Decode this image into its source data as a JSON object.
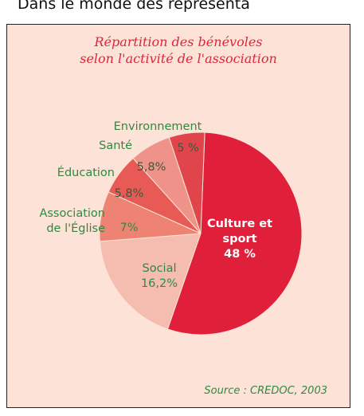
{
  "header": "Dans le monde des représenta",
  "chart_data": {
    "type": "pie",
    "title": [
      "Répartition des bénévoles",
      "selon l'activité de l'association"
    ],
    "categories": [
      "Culture et sport",
      "Social",
      "Association de l'Église",
      "Éducation",
      "Santé",
      "Environnement"
    ],
    "values": [
      48,
      16.2,
      7,
      5.8,
      5.8,
      5
    ],
    "value_labels": [
      "48 %",
      "16,2%",
      "7%",
      "5,8%",
      "5,8%",
      "5 %"
    ],
    "colors": [
      "#e01f3a",
      "#f5bcb0",
      "#ef8373",
      "#e75a55",
      "#ef938a",
      "#e0454c"
    ],
    "source": "Source : CREDOC, 2003"
  }
}
